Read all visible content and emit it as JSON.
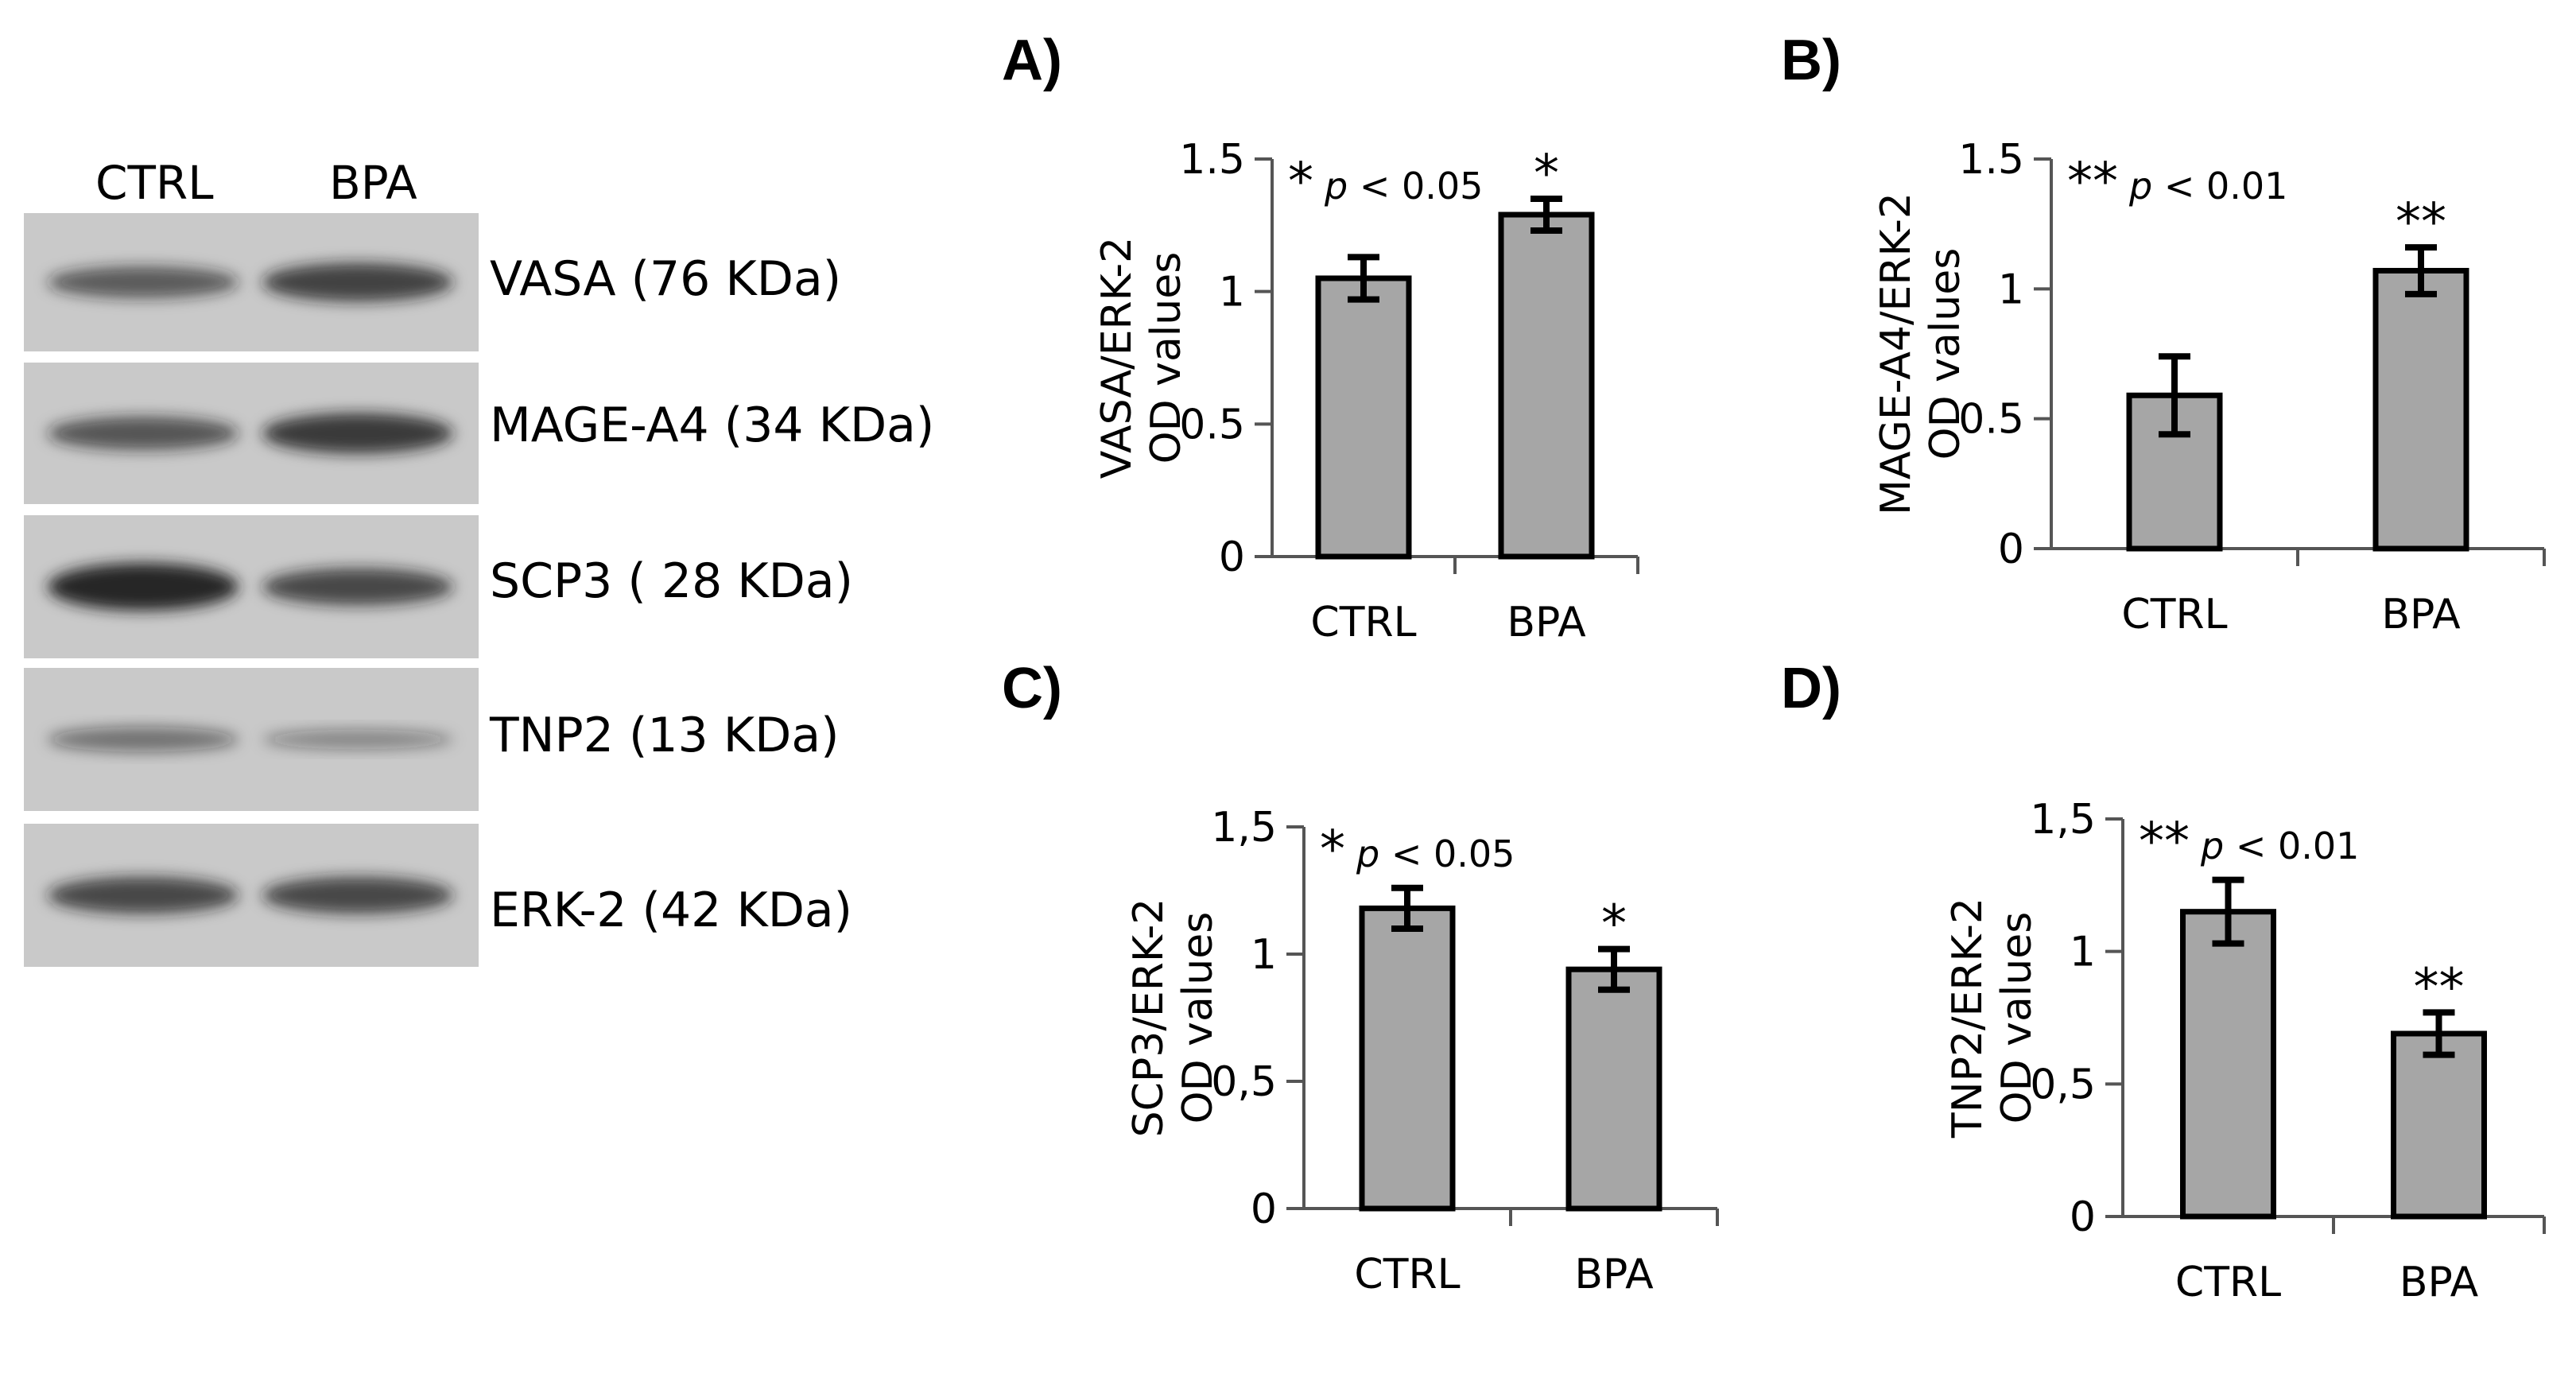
{
  "western_blot": {
    "lanes": [
      "CTRL",
      "BPA"
    ],
    "proteins": [
      {
        "name": "VASA (76 KDa)",
        "intensity": [
          0.55,
          0.75
        ]
      },
      {
        "name": "MAGE-A4 (34 KDa)",
        "intensity": [
          0.6,
          0.8
        ]
      },
      {
        "name": "SCP3 ( 28 KDa)",
        "intensity": [
          1.0,
          0.7
        ]
      },
      {
        "name": "TNP2 (13 KDa)",
        "intensity": [
          0.35,
          0.2
        ]
      },
      {
        "name": "ERK-2 (42 KDa)",
        "intensity": [
          0.7,
          0.7
        ]
      }
    ]
  },
  "colors": {
    "bar_fill": "#a6a6a6",
    "bar_stroke": "#000000",
    "blot_bg": "#c9c9c9",
    "band": "#1a1a1a"
  },
  "chart_data": [
    {
      "panel": "A)",
      "type": "bar",
      "categories": [
        "CTRL",
        "BPA"
      ],
      "values": [
        1.05,
        1.29
      ],
      "errors": [
        0.08,
        0.06
      ],
      "ylabel_line1": "VASA/ERK-2",
      "ylabel_line2": "OD values",
      "yticks": [
        "0",
        "0.5",
        "1",
        "1.5"
      ],
      "ylim": [
        0,
        1.5
      ],
      "sig_stars": "*",
      "p_prefix": "p",
      "p_text": " < 0.05",
      "bar_star": "*",
      "star_bar": 1
    },
    {
      "panel": "B)",
      "type": "bar",
      "categories": [
        "CTRL",
        "BPA"
      ],
      "values": [
        0.59,
        1.07
      ],
      "errors": [
        0.15,
        0.09
      ],
      "ylabel_line1": "MAGE-A4/ERK-2",
      "ylabel_line2": "OD values",
      "yticks": [
        "0",
        "0.5",
        "1",
        "1.5"
      ],
      "ylim": [
        0,
        1.5
      ],
      "sig_stars": "**",
      "p_prefix": "p",
      "p_text": " < 0.01",
      "bar_star": "**",
      "star_bar": 1
    },
    {
      "panel": "C)",
      "type": "bar",
      "categories": [
        "CTRL",
        "BPA"
      ],
      "values": [
        1.18,
        0.94
      ],
      "errors": [
        0.08,
        0.08
      ],
      "ylabel_line1": "SCP3/ERK-2",
      "ylabel_line2": "OD values",
      "yticks": [
        "0",
        "0,5",
        "1",
        "1,5"
      ],
      "ylim": [
        0,
        1.5
      ],
      "sig_stars": "*",
      "p_prefix": "p",
      "p_text": " < 0.05",
      "bar_star": "*",
      "star_bar": 1
    },
    {
      "panel": "D)",
      "type": "bar",
      "categories": [
        "CTRL",
        "BPA"
      ],
      "values": [
        1.15,
        0.69
      ],
      "errors": [
        0.12,
        0.08
      ],
      "ylabel_line1": "TNP2/ERK-2",
      "ylabel_line2": "OD values",
      "yticks": [
        "0",
        "0,5",
        "1",
        "1,5"
      ],
      "ylim": [
        0,
        1.5
      ],
      "sig_stars": "**",
      "p_prefix": "p",
      "p_text": " < 0.01",
      "bar_star": "**",
      "star_bar": 1
    }
  ]
}
